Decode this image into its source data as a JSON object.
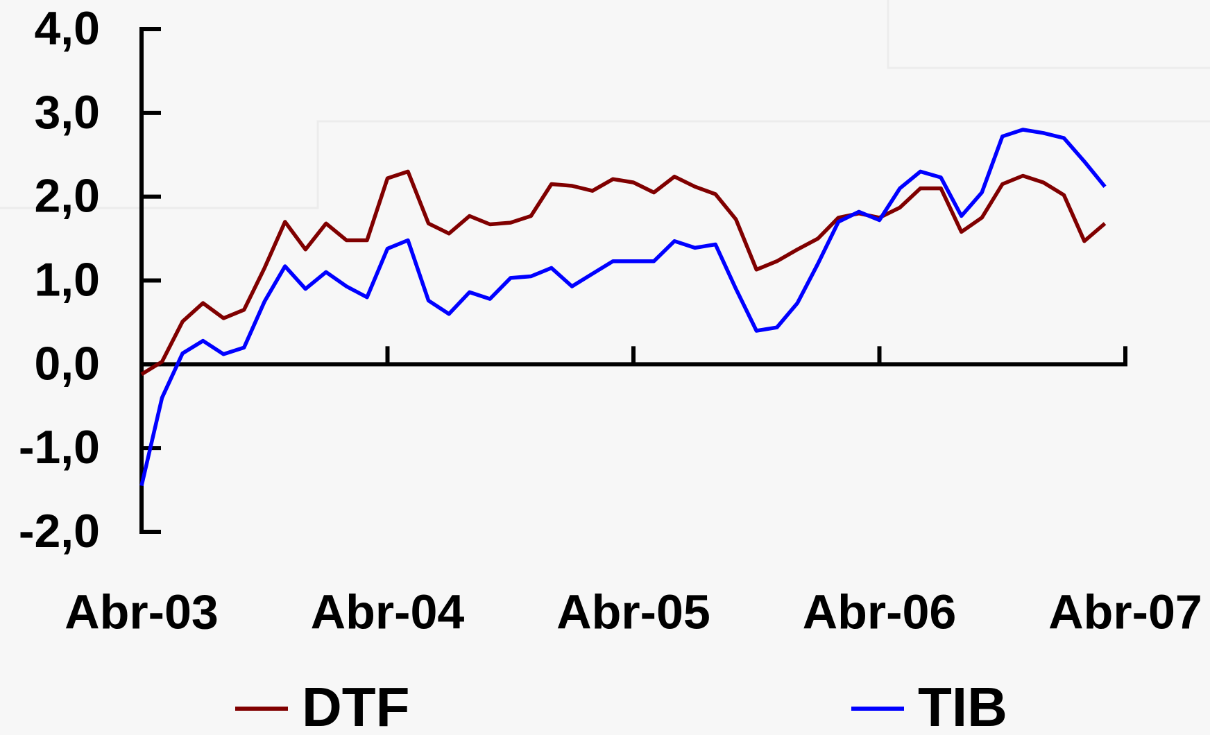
{
  "chart_data": {
    "type": "line",
    "x": [
      0,
      1,
      2,
      3,
      4,
      5,
      6,
      7,
      8,
      9,
      10,
      11,
      12,
      13,
      14,
      15,
      16,
      17,
      18,
      19,
      20,
      21,
      22,
      23,
      24,
      25,
      26,
      27,
      28,
      29,
      30,
      31,
      32,
      33,
      34,
      35,
      36,
      37,
      38,
      39,
      40,
      41,
      42,
      43,
      44,
      45,
      46,
      47
    ],
    "xlim": [
      0,
      48
    ],
    "xticks": [
      {
        "value": 0,
        "label": "Abr-03"
      },
      {
        "value": 12,
        "label": "Abr-04"
      },
      {
        "value": 24,
        "label": "Abr-05"
      },
      {
        "value": 36,
        "label": "Abr-06"
      },
      {
        "value": 48,
        "label": "Abr-07"
      }
    ],
    "ylim": [
      -2,
      4
    ],
    "yticks": [
      {
        "value": -2,
        "label": "-2,0"
      },
      {
        "value": -1,
        "label": "-1,0"
      },
      {
        "value": 0,
        "label": "0,0"
      },
      {
        "value": 1,
        "label": "1,0"
      },
      {
        "value": 2,
        "label": "2,0"
      },
      {
        "value": 3,
        "label": "3,0"
      },
      {
        "value": 4,
        "label": "4,0"
      }
    ],
    "legend": "bottom",
    "series": [
      {
        "name": "DTF",
        "color": "#800000",
        "values": [
          -0.12,
          0.03,
          0.51,
          0.73,
          0.55,
          0.65,
          1.15,
          1.7,
          1.37,
          1.68,
          1.48,
          1.48,
          2.22,
          2.3,
          1.68,
          1.56,
          1.77,
          1.67,
          1.69,
          1.77,
          2.15,
          2.13,
          2.07,
          2.21,
          2.17,
          2.05,
          2.24,
          2.12,
          2.03,
          1.73,
          1.13,
          1.23,
          1.37,
          1.5,
          1.75,
          1.8,
          1.75,
          1.87,
          2.1,
          2.1,
          1.58,
          1.75,
          2.15,
          2.25,
          2.17,
          2.02,
          1.47,
          1.68
        ]
      },
      {
        "name": "TIB",
        "color": "#0000ff",
        "values": [
          -1.45,
          -0.4,
          0.13,
          0.28,
          0.12,
          0.2,
          0.75,
          1.17,
          0.9,
          1.1,
          0.93,
          0.8,
          1.38,
          1.48,
          0.76,
          0.6,
          0.86,
          0.78,
          1.03,
          1.05,
          1.15,
          0.93,
          1.08,
          1.23,
          1.23,
          1.23,
          1.47,
          1.39,
          1.43,
          0.9,
          0.4,
          0.44,
          0.73,
          1.2,
          1.7,
          1.82,
          1.72,
          2.1,
          2.3,
          2.23,
          1.77,
          2.05,
          2.72,
          2.8,
          2.76,
          2.7,
          2.42,
          2.12
        ]
      }
    ]
  }
}
